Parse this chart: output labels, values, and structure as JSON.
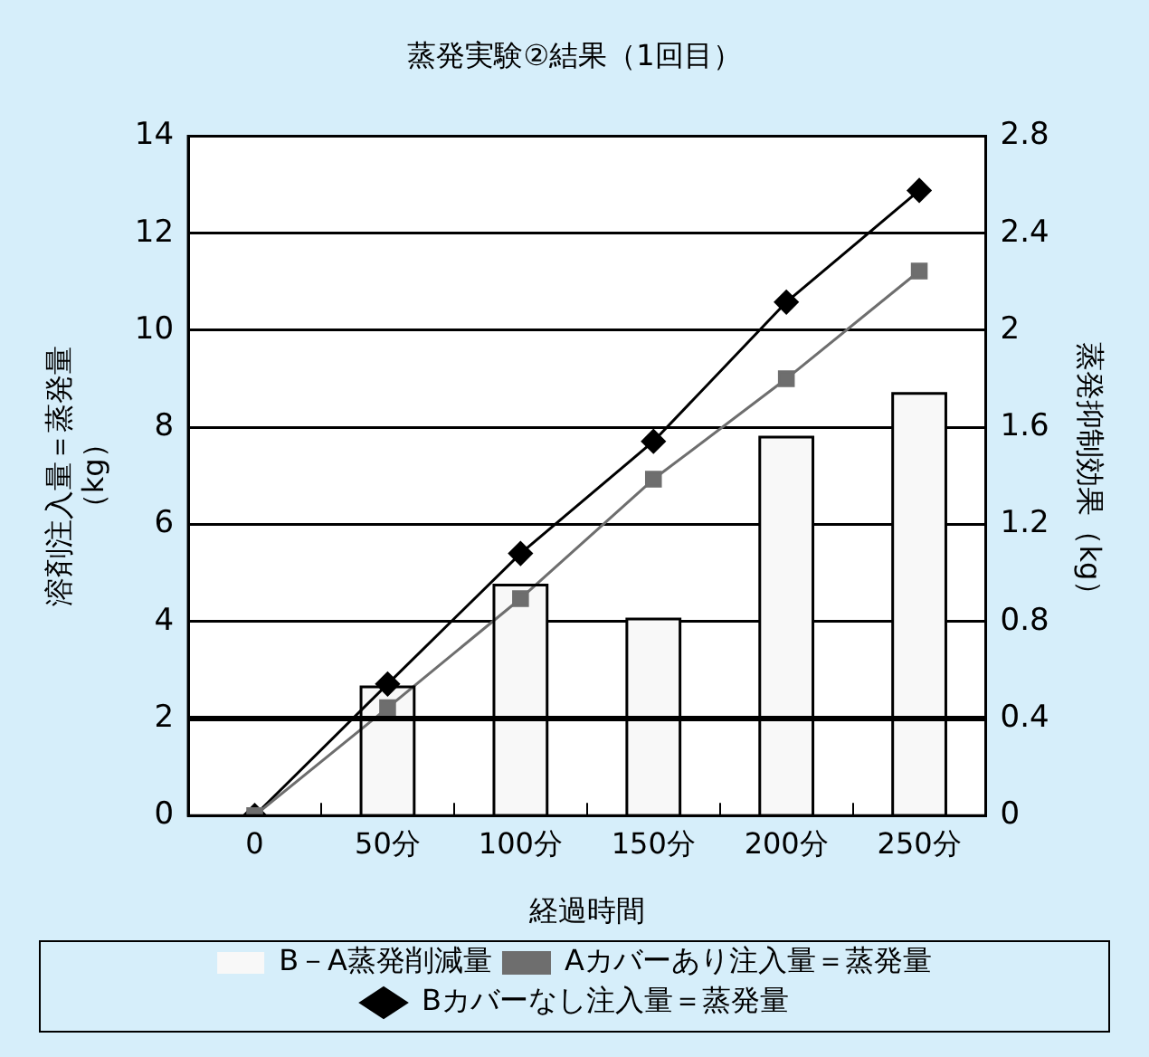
{
  "chart_data": {
    "type": "line",
    "title": "蒸発実験②結果（1回目）",
    "xlabel": "経過時間",
    "ylabel": "溶剤注入量＝蒸発量（kg）",
    "y2label": "蒸発抑制効果（kg）",
    "categories": [
      "0",
      "50分",
      "100分",
      "150分",
      "200分",
      "250分"
    ],
    "series": [
      {
        "name": "B－A蒸発削減量",
        "type": "bar",
        "axis": "y2",
        "color": "#f8f8f8",
        "values": [
          null,
          0.53,
          0.95,
          0.81,
          1.56,
          1.74
        ]
      },
      {
        "name": "Aカバーあり注入量＝蒸発量",
        "marker": "square",
        "color": "#6e6e6e",
        "values": [
          0,
          2.22,
          4.47,
          6.93,
          9.0,
          11.22
        ]
      },
      {
        "name": "Bカバーなし注入量＝蒸発量",
        "marker": "diamond",
        "color": "#000000",
        "values": [
          0,
          2.71,
          5.4,
          7.71,
          10.58,
          12.88
        ]
      }
    ],
    "ylim": [
      0,
      14
    ],
    "yticks": [
      0,
      2,
      4,
      6,
      8,
      10,
      12,
      14
    ],
    "y2lim": [
      0,
      2.8
    ],
    "y2ticks": [
      0,
      0.4,
      0.8,
      1.2,
      1.6,
      2,
      2.4,
      2.8
    ],
    "ref_lines": [
      {
        "axis": "y",
        "value": 2,
        "color": "#000000"
      }
    ],
    "grid": "y",
    "legend": "bottom"
  }
}
